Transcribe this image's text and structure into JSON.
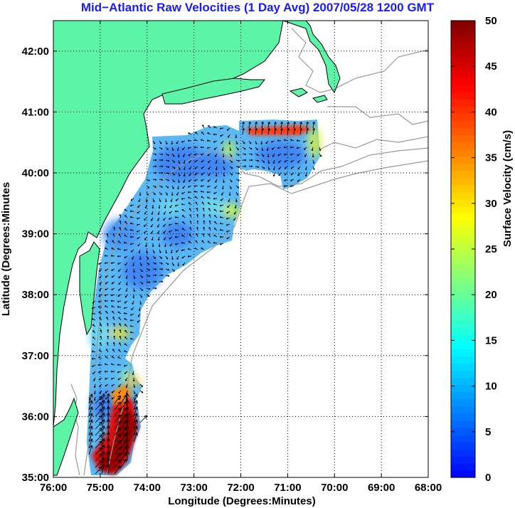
{
  "chart_data": {
    "type": "heatmap",
    "title": "Mid−Atlantic Raw Velocities (1 Day Avg) 2007/05/28 1200 GMT",
    "xlabel": "Longitude (Degrees:Minutes)",
    "ylabel": "Latitude (Degrees:Minutes",
    "x_ticks": [
      {
        "value": -76,
        "label": "76:00"
      },
      {
        "value": -75,
        "label": "75:00"
      },
      {
        "value": -74,
        "label": "74:00"
      },
      {
        "value": -73,
        "label": "73:00"
      },
      {
        "value": -72,
        "label": "72:00"
      },
      {
        "value": -71,
        "label": "71:00"
      },
      {
        "value": -70,
        "label": "70:00"
      },
      {
        "value": -69,
        "label": "69:00"
      },
      {
        "value": -68,
        "label": "68:00"
      }
    ],
    "y_ticks": [
      {
        "value": 35,
        "label": "35:00"
      },
      {
        "value": 36,
        "label": "36:00"
      },
      {
        "value": 37,
        "label": "37:00"
      },
      {
        "value": 38,
        "label": "38:00"
      },
      {
        "value": 39,
        "label": "39:00"
      },
      {
        "value": 40,
        "label": "40:00"
      },
      {
        "value": 41,
        "label": "41:00"
      },
      {
        "value": 42,
        "label": "42:00"
      }
    ],
    "xlim": [
      -76,
      -68
    ],
    "ylim": [
      35,
      42.5
    ],
    "grid": true,
    "colorbar": {
      "label": "Surface Velocity (cm/s)",
      "range": [
        0,
        50
      ],
      "ticks": [
        0,
        5,
        10,
        15,
        20,
        25,
        30,
        35,
        40,
        45,
        50
      ],
      "colormap": "jet"
    },
    "land_color": "#5cf5a8",
    "coast_color": "#000000",
    "bathymetry_color": "#9a9a9a",
    "grid_color": "#000000"
  }
}
